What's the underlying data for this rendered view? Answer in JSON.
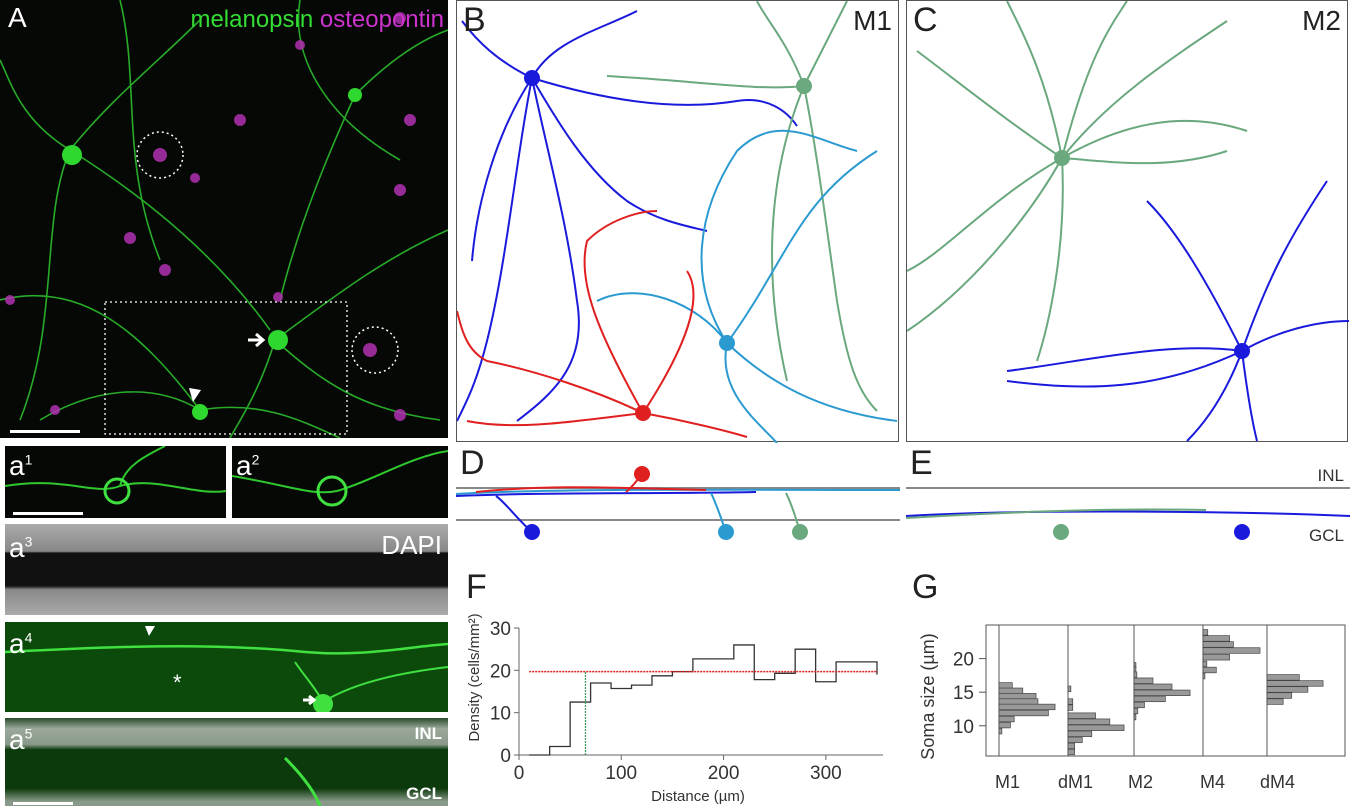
{
  "panels": {
    "A": {
      "letter": "A",
      "stain1": "melanopsin",
      "stain2": "osteopontin",
      "color1": "#33dd33",
      "color2": "#cc33cc"
    },
    "a1": {
      "letter": "a",
      "sup": "1"
    },
    "a2": {
      "letter": "a",
      "sup": "2"
    },
    "a3": {
      "letter": "a",
      "sup": "3",
      "label": "DAPI"
    },
    "a4": {
      "letter": "a",
      "sup": "4",
      "mark": "*"
    },
    "a5": {
      "letter": "a",
      "sup": "5",
      "inl": "INL",
      "gcl": "GCL"
    },
    "B": {
      "letter": "B",
      "type": "M1"
    },
    "C": {
      "letter": "C",
      "type": "M2"
    },
    "D": {
      "letter": "D"
    },
    "E": {
      "letter": "E",
      "inl": "INL",
      "gcl": "GCL"
    },
    "F": {
      "letter": "F"
    },
    "G": {
      "letter": "G"
    }
  },
  "trace_colors": {
    "blue": "#1a1adc",
    "cyan": "#2a9ad0",
    "green": "#6aa87e",
    "red": "#e02020"
  },
  "chart_data": [
    {
      "type": "line",
      "step": true,
      "xlabel": "Distance (µm)",
      "ylabel": "Density  (cells/mm²)",
      "xlim": [
        0,
        350
      ],
      "ylim": [
        0,
        30
      ],
      "xticks": [
        0,
        100,
        200,
        300
      ],
      "yticks": [
        0,
        10,
        20,
        30
      ],
      "bin_edges": [
        10,
        30,
        50,
        70,
        90,
        110,
        130,
        150,
        170,
        190,
        210,
        230,
        250,
        270,
        290,
        310,
        330,
        350
      ],
      "values": [
        0,
        2,
        12.5,
        17,
        15.7,
        16.5,
        18.7,
        19.7,
        22.7,
        22.7,
        26,
        17.8,
        19.3,
        25,
        17.3,
        22,
        22
      ],
      "reference_lines": [
        {
          "orientation": "horizontal",
          "value": 19.7,
          "color": "#e02020"
        },
        {
          "orientation": "vertical",
          "value": 65,
          "color": "#40a060"
        }
      ]
    },
    {
      "type": "bar",
      "orientation": "horizontal-histograms",
      "ylabel": "Soma size (µm)",
      "ylim": [
        5.5,
        25
      ],
      "yticks": [
        10,
        15,
        20
      ],
      "categories": [
        "M1",
        "dM1",
        "M2",
        "M4",
        "dM4"
      ],
      "bar_color": "#999999",
      "series": [
        {
          "bins": [
            [
              16,
              14
            ],
            [
              15.2,
              25
            ],
            [
              14.4,
              39
            ],
            [
              13.6,
              41
            ],
            [
              12.8,
              59
            ],
            [
              11.9,
              52
            ],
            [
              11,
              16
            ],
            [
              10.1,
              12
            ],
            [
              9.2,
              3
            ]
          ]
        },
        {
          "bins": [
            [
              15.5,
              3
            ],
            [
              13.6,
              5
            ],
            [
              12.7,
              5
            ],
            [
              11.5,
              29
            ],
            [
              10.6,
              44
            ],
            [
              9.7,
              59
            ],
            [
              8.8,
              25
            ],
            [
              7.9,
              15
            ],
            [
              7,
              7
            ],
            [
              6.1,
              7
            ]
          ]
        },
        {
          "bins": [
            [
              19,
              2
            ],
            [
              18.4,
              2
            ],
            [
              17.6,
              3
            ],
            [
              16.7,
              20
            ],
            [
              15.8,
              40
            ],
            [
              14.9,
              59
            ],
            [
              14,
              33
            ],
            [
              13.1,
              11
            ],
            [
              12.2,
              4
            ],
            [
              11.3,
              2
            ]
          ]
        },
        {
          "bins": [
            [
              23.9,
              5
            ],
            [
              23,
              28
            ],
            [
              22.1,
              32
            ],
            [
              21.2,
              60
            ],
            [
              20.2,
              28
            ],
            [
              19.2,
              4
            ],
            [
              18.3,
              14
            ],
            [
              17.4,
              2
            ]
          ]
        },
        {
          "bins": [
            [
              17.2,
              34
            ],
            [
              16.3,
              59
            ],
            [
              15.4,
              43
            ],
            [
              14.5,
              26
            ],
            [
              13.6,
              17
            ]
          ]
        }
      ]
    }
  ]
}
